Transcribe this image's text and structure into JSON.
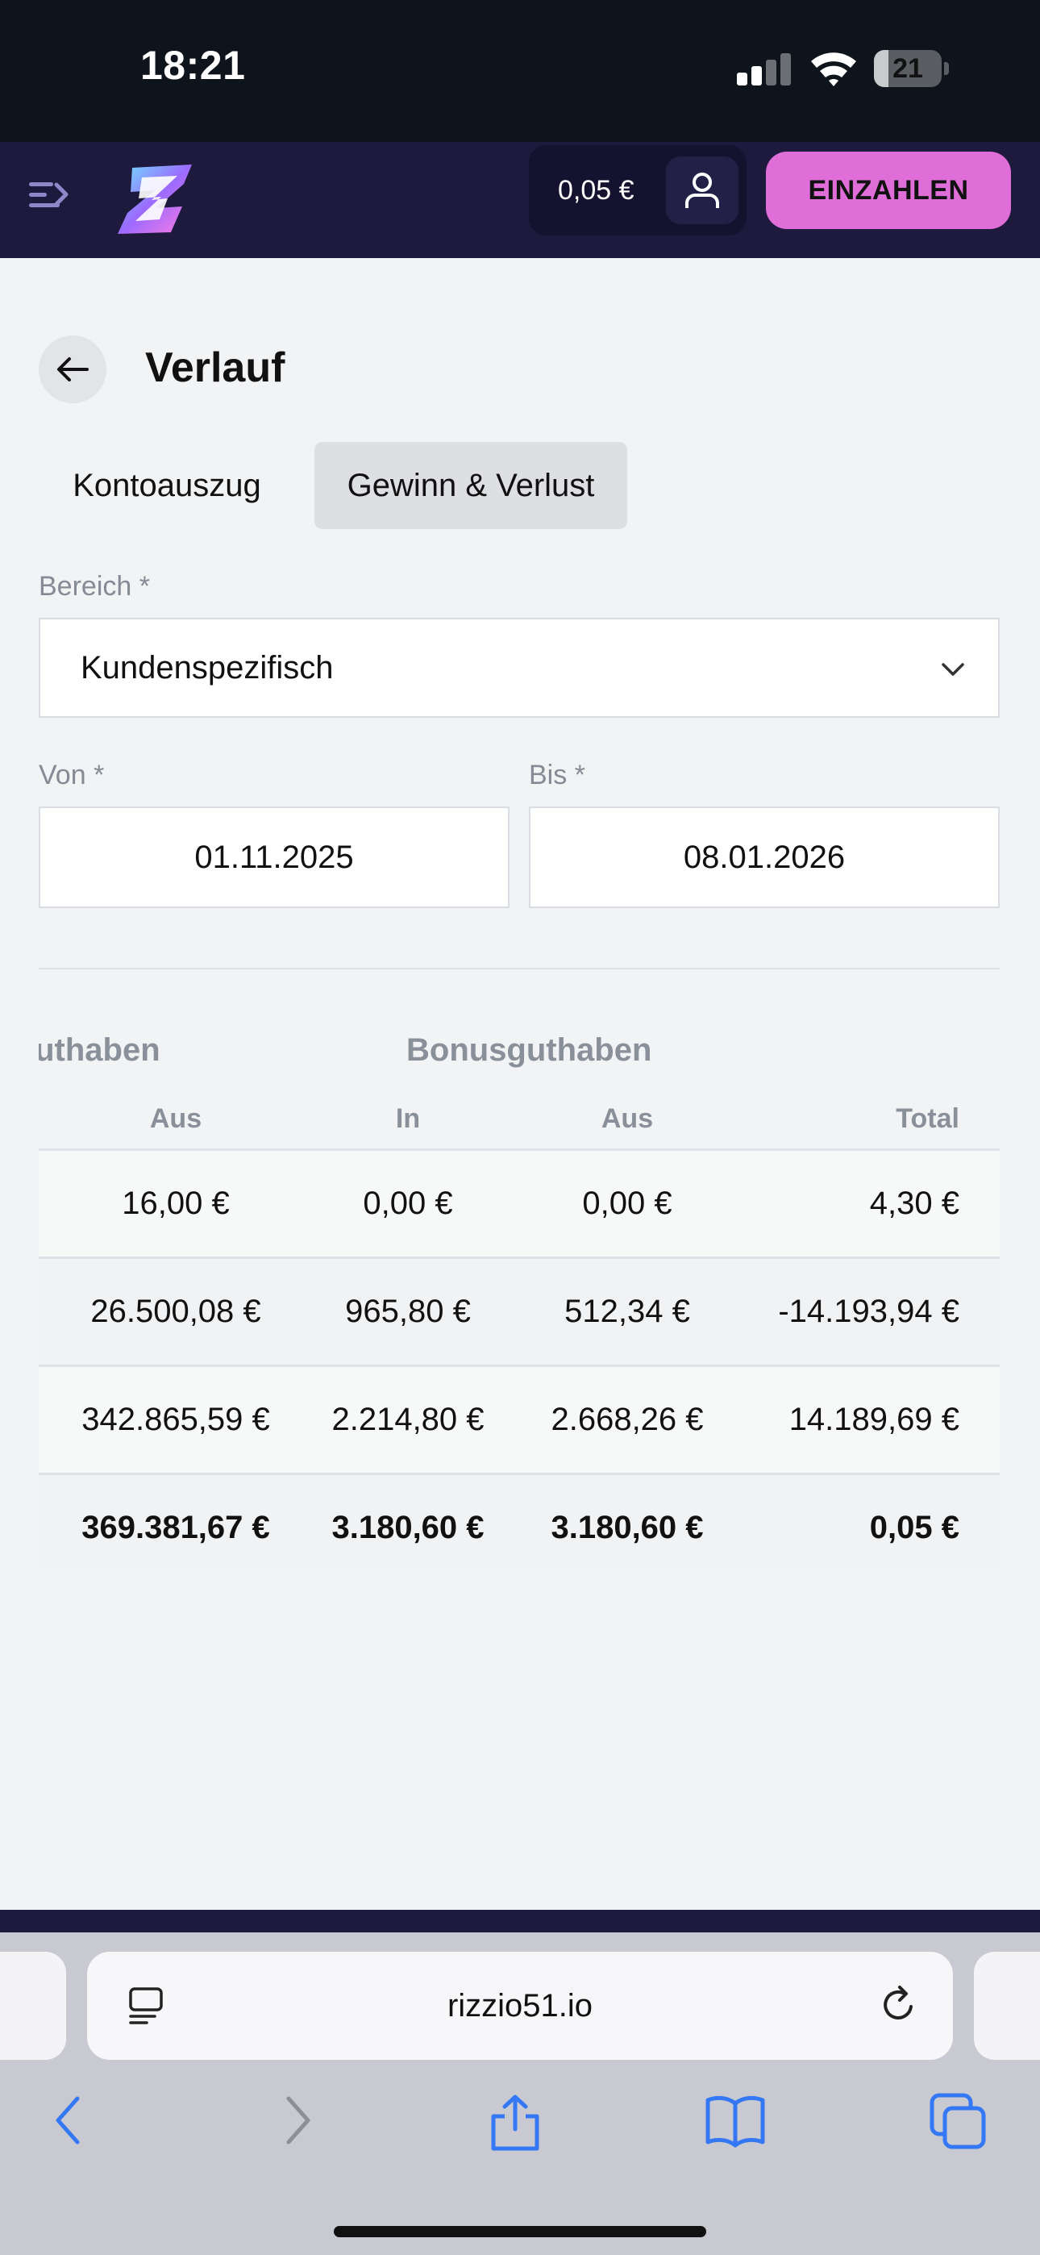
{
  "status_bar": {
    "time": "18:21",
    "battery": "21",
    "battery_fraction": 0.21
  },
  "header": {
    "balance": "0,05 €",
    "deposit_label": "EINZAHLEN"
  },
  "page": {
    "title": "Verlauf"
  },
  "tabs": [
    {
      "label": "Kontoauszug",
      "active": false
    },
    {
      "label": "Gewinn & Verlust",
      "active": true
    }
  ],
  "filters": {
    "range_label": "Bereich *",
    "range_value": "Kundenspezifisch",
    "from_label": "Von *",
    "from_value": "01.11.2025",
    "to_label": "Bis *",
    "to_value": "08.01.2026"
  },
  "table": {
    "group_headers": [
      "Guthaben",
      "Bonusguthaben"
    ],
    "columns": [
      "Aus",
      "In",
      "Aus",
      "Total"
    ],
    "rows": [
      [
        "16,00 €",
        "0,00 €",
        "0,00 €",
        "4,30 €"
      ],
      [
        "26.500,08 €",
        "965,80 €",
        "512,34 €",
        "-14.193,94 €"
      ],
      [
        "342.865,59 €",
        "2.214,80 €",
        "2.668,26 €",
        "14.189,69 €"
      ]
    ],
    "total_row": [
      "369.381,67 €",
      "3.180,60 €",
      "3.180,60 €",
      "0,05 €"
    ]
  },
  "browser": {
    "url": "rizzio51.io"
  },
  "colors": {
    "accent": "#e06ed8",
    "header_bg": "#1d1a3e",
    "status_bg": "#0e141b",
    "ios_blue": "#3478f6"
  }
}
